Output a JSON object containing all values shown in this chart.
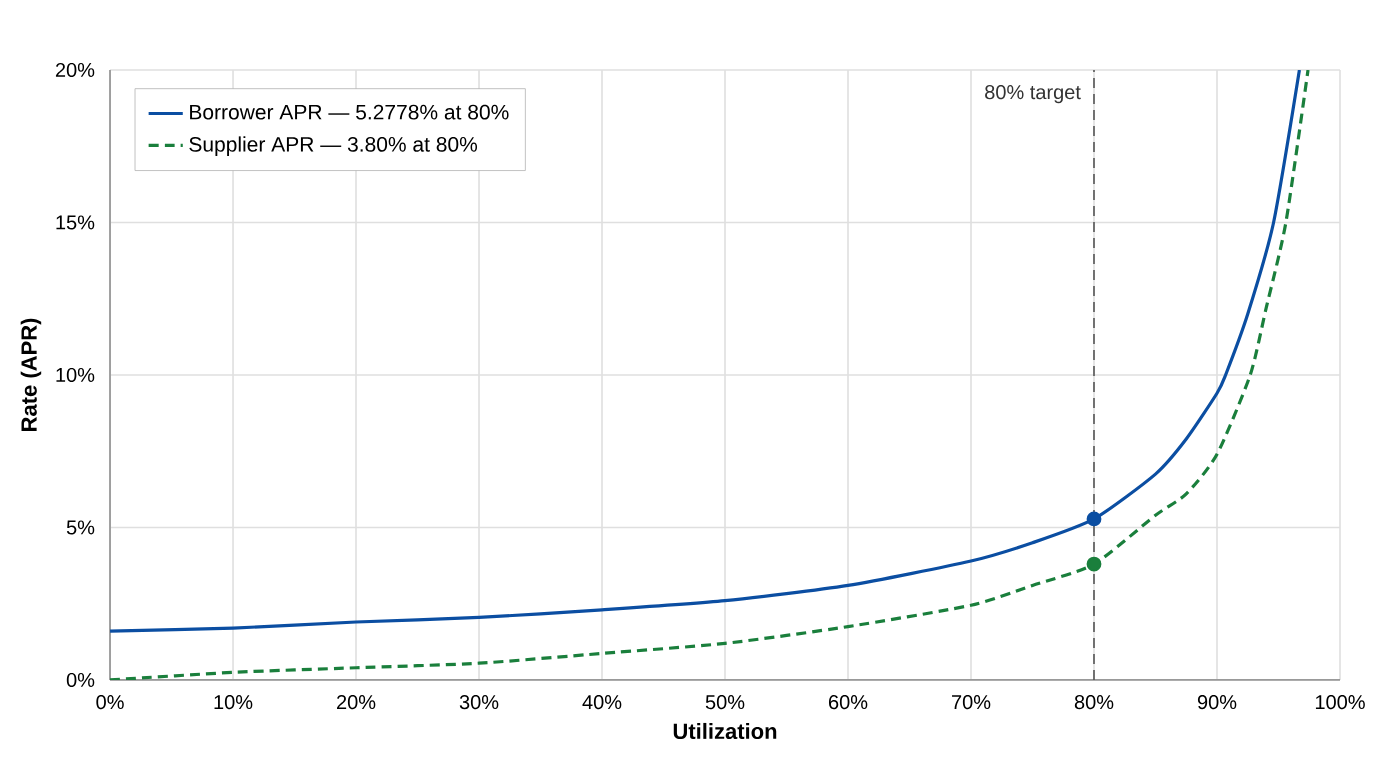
{
  "chart_data": {
    "type": "line",
    "xlabel": "Utilization",
    "ylabel": "Rate (APR)",
    "xlim": [
      0,
      100
    ],
    "ylim": [
      0,
      20
    ],
    "xticks": [
      {
        "value": 0,
        "label": "0%"
      },
      {
        "value": 10,
        "label": "10%"
      },
      {
        "value": 20,
        "label": "20%"
      },
      {
        "value": 30,
        "label": "30%"
      },
      {
        "value": 40,
        "label": "40%"
      },
      {
        "value": 50,
        "label": "50%"
      },
      {
        "value": 60,
        "label": "60%"
      },
      {
        "value": 70,
        "label": "70%"
      },
      {
        "value": 80,
        "label": "80%"
      },
      {
        "value": 90,
        "label": "90%"
      },
      {
        "value": 100,
        "label": "100%"
      }
    ],
    "yticks": [
      {
        "value": 0,
        "label": "0%"
      },
      {
        "value": 5,
        "label": "5%"
      },
      {
        "value": 10,
        "label": "10%"
      },
      {
        "value": 15,
        "label": "15%"
      },
      {
        "value": 20,
        "label": "20%"
      }
    ],
    "grid": true,
    "legend": "top left",
    "series": [
      {
        "name": "Borrower APR — 5.2778% at 80%",
        "color": "#0b4ea2",
        "line_style": "solid",
        "marker": "none",
        "x": [
          0,
          10,
          20,
          30,
          40,
          50,
          60,
          70,
          75,
          80,
          85,
          87.5,
          90,
          90.7,
          92.5,
          94.6,
          96.7
        ],
        "values": [
          1.6,
          1.7,
          1.9,
          2.05,
          2.3,
          2.6,
          3.1,
          3.9,
          4.5,
          5.28,
          6.75,
          7.9,
          9.4,
          10,
          12,
          15,
          20
        ]
      },
      {
        "name": "Supplier APR — 3.80% at 80%",
        "color": "#1a7f3c",
        "line_style": "dashed",
        "marker": "none",
        "x": [
          0,
          10,
          20,
          30,
          40,
          50,
          60,
          70,
          75,
          80,
          85,
          87.5,
          90,
          92.7,
          94,
          95.6,
          97.4
        ],
        "values": [
          0,
          0.25,
          0.4,
          0.55,
          0.87,
          1.2,
          1.75,
          2.45,
          3.1,
          3.8,
          5.4,
          6.1,
          7.4,
          10,
          12.2,
          15,
          20
        ]
      },
      {
        "type": "scatter",
        "marker": "circle",
        "color": "#0b4ea2",
        "x": [
          80
        ],
        "values": [
          5.28
        ]
      },
      {
        "type": "scatter",
        "marker": "circle",
        "color": "#1a7f3c",
        "x": [
          80
        ],
        "values": [
          3.8
        ]
      }
    ],
    "ref_lines": [
      {
        "axis": "x",
        "value": 80,
        "label": "80% target",
        "color": "#555555",
        "line_style": "dashed"
      }
    ]
  }
}
